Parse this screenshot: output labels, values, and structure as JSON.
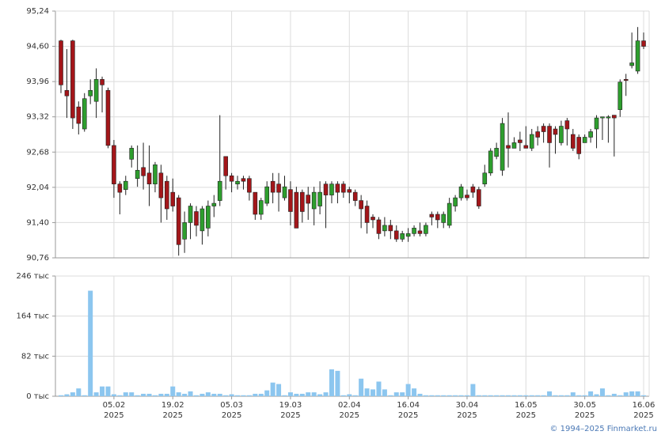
{
  "credit": "© 1994–2025 Finmarket.ru",
  "chart_data": [
    {
      "type": "candlestick",
      "categories": [
        null,
        null,
        null,
        null,
        null,
        null,
        null,
        null,
        null,
        "05.02\n2025",
        null,
        null,
        null,
        null,
        null,
        null,
        null,
        null,
        null,
        "19.02\n2025",
        null,
        null,
        null,
        null,
        null,
        null,
        null,
        null,
        null,
        "05.03\n2025",
        null,
        null,
        null,
        null,
        null,
        null,
        null,
        null,
        null,
        "19.03\n2025",
        null,
        null,
        null,
        null,
        null,
        null,
        null,
        null,
        null,
        "02.04\n2025",
        null,
        null,
        null,
        null,
        null,
        null,
        null,
        null,
        null,
        "16.04\n2025",
        null,
        null,
        null,
        null,
        null,
        null,
        null,
        null,
        null,
        "30.04\n2025",
        null,
        null,
        null,
        null,
        null,
        null,
        null,
        null,
        null,
        "16.05\n2025",
        null,
        null,
        null,
        null,
        null,
        null,
        null,
        null,
        null,
        "30.05\n2025",
        null,
        null,
        null,
        null,
        null,
        null,
        null,
        null,
        null,
        "16.06\n2025"
      ],
      "open": [
        94.7,
        93.8,
        94.7,
        93.5,
        93.1,
        93.7,
        93.6,
        94.0,
        93.8,
        92.8,
        92.1,
        92.0,
        92.55,
        92.2,
        92.4,
        92.3,
        92.1,
        92.3,
        92.15,
        91.95,
        91.85,
        91.1,
        91.4,
        91.6,
        91.25,
        91.3,
        91.7,
        91.8,
        92.6,
        92.25,
        92.1,
        92.2,
        92.2,
        91.95,
        91.55,
        91.75,
        92.15,
        92.1,
        91.85,
        92.0,
        91.95,
        91.95,
        91.9,
        91.65,
        91.7,
        92.1,
        91.9,
        92.1,
        92.1,
        92.0,
        91.95,
        91.8,
        91.7,
        91.5,
        91.45,
        91.25,
        91.35,
        91.25,
        91.1,
        91.15,
        91.2,
        91.25,
        91.2,
        91.55,
        91.55,
        91.4,
        91.35,
        91.7,
        91.85,
        91.9,
        92.05,
        92.0,
        92.1,
        92.3,
        92.6,
        92.35,
        92.8,
        92.75,
        92.9,
        92.8,
        92.75,
        93.05,
        93.15,
        93.15,
        93.1,
        92.85,
        93.25,
        93.0,
        92.95,
        92.85,
        92.95,
        93.1,
        93.3,
        93.3,
        93.35,
        93.45,
        94.0,
        94.25,
        94.15,
        94.7
      ],
      "high": [
        94.72,
        94.55,
        94.72,
        93.6,
        93.75,
        94.0,
        94.2,
        94.05,
        93.85,
        92.9,
        92.15,
        92.25,
        92.8,
        92.8,
        92.85,
        92.8,
        92.5,
        92.45,
        92.25,
        92.2,
        91.9,
        91.6,
        91.75,
        91.7,
        91.7,
        91.8,
        91.9,
        93.35,
        92.6,
        92.3,
        92.25,
        92.25,
        92.25,
        91.95,
        91.85,
        92.15,
        92.3,
        92.3,
        92.25,
        92.15,
        92.05,
        92.0,
        92.05,
        92.05,
        92.15,
        92.15,
        92.15,
        92.15,
        92.15,
        92.05,
        92.0,
        91.9,
        91.8,
        91.55,
        91.5,
        91.5,
        91.45,
        91.35,
        91.25,
        91.3,
        91.35,
        91.4,
        91.4,
        91.6,
        91.6,
        91.6,
        91.85,
        91.9,
        92.1,
        92.0,
        92.1,
        92.05,
        92.45,
        92.75,
        92.85,
        93.3,
        93.4,
        92.95,
        93.05,
        93.15,
        93.1,
        93.15,
        93.2,
        93.2,
        93.15,
        93.25,
        93.3,
        93.1,
        93.0,
        93.0,
        93.1,
        93.35,
        93.32,
        93.35,
        93.35,
        94.0,
        94.1,
        94.85,
        94.95,
        94.85
      ],
      "low": [
        93.75,
        93.3,
        93.1,
        93.0,
        93.05,
        93.55,
        93.3,
        93.4,
        92.75,
        91.85,
        91.55,
        91.9,
        92.4,
        92.05,
        92.0,
        91.7,
        91.95,
        91.4,
        91.45,
        91.6,
        90.8,
        90.85,
        91.1,
        91.15,
        91.0,
        91.15,
        91.5,
        91.7,
        92.0,
        91.95,
        92.0,
        92.0,
        91.8,
        91.45,
        91.45,
        91.7,
        91.75,
        91.6,
        91.8,
        91.35,
        91.3,
        91.4,
        91.45,
        91.35,
        91.55,
        91.3,
        91.75,
        91.75,
        91.85,
        91.75,
        91.7,
        91.3,
        91.2,
        91.3,
        91.1,
        91.15,
        91.1,
        91.05,
        91.05,
        91.05,
        91.15,
        91.15,
        91.15,
        91.35,
        91.3,
        91.3,
        91.3,
        91.6,
        91.8,
        91.8,
        91.85,
        91.65,
        92.05,
        92.25,
        92.55,
        92.25,
        92.4,
        92.75,
        92.7,
        92.75,
        92.7,
        92.8,
        92.85,
        92.4,
        92.65,
        92.8,
        92.8,
        92.7,
        92.55,
        92.85,
        92.85,
        92.75,
        92.9,
        92.85,
        92.6,
        93.32,
        93.7,
        94.2,
        94.1,
        94.55
      ],
      "close": [
        93.9,
        93.7,
        93.3,
        93.2,
        93.65,
        93.8,
        94.0,
        93.9,
        92.8,
        92.1,
        91.95,
        92.15,
        92.75,
        92.35,
        92.25,
        92.1,
        92.45,
        91.85,
        91.65,
        91.7,
        91.0,
        91.4,
        91.7,
        91.35,
        91.65,
        91.7,
        91.75,
        92.15,
        92.25,
        92.15,
        92.15,
        92.15,
        91.95,
        91.55,
        91.8,
        92.05,
        91.95,
        91.95,
        92.05,
        91.6,
        91.3,
        91.6,
        91.75,
        91.95,
        91.95,
        91.9,
        92.1,
        91.95,
        91.95,
        91.95,
        91.8,
        91.65,
        91.4,
        91.45,
        91.2,
        91.35,
        91.25,
        91.1,
        91.2,
        91.2,
        91.3,
        91.2,
        91.35,
        91.5,
        91.45,
        91.55,
        91.75,
        91.85,
        92.05,
        91.85,
        91.95,
        91.7,
        92.3,
        92.7,
        92.75,
        93.2,
        92.75,
        92.85,
        92.85,
        92.75,
        93.0,
        92.95,
        93.05,
        92.85,
        93.0,
        93.15,
        93.1,
        92.75,
        92.65,
        92.95,
        93.05,
        93.3,
        93.32,
        93.32,
        93.3,
        93.95,
        93.98,
        94.3,
        94.7,
        94.6
      ],
      "up_color": "#2e9e2e",
      "down_color": "#a3161a",
      "ylim": [
        90.76,
        95.24
      ],
      "yticks": [
        {
          "value": 90.76,
          "label": "90,76"
        },
        {
          "value": 91.4,
          "label": "91,40"
        },
        {
          "value": 92.04,
          "label": "92,04"
        },
        {
          "value": 92.68,
          "label": "92,68"
        },
        {
          "value": 93.32,
          "label": "93,32"
        },
        {
          "value": 93.96,
          "label": "93,96"
        },
        {
          "value": 94.6,
          "label": "94,60"
        },
        {
          "value": 95.24,
          "label": "95,24"
        }
      ],
      "grid": true
    },
    {
      "type": "bar",
      "values": [
        2,
        4,
        8,
        16,
        2,
        216,
        8,
        20,
        20,
        4,
        2,
        8,
        8,
        2,
        5,
        5,
        2,
        5,
        5,
        20,
        8,
        5,
        10,
        2,
        5,
        8,
        5,
        5,
        2,
        4,
        2,
        2,
        2,
        5,
        5,
        12,
        28,
        25,
        2,
        8,
        5,
        5,
        8,
        8,
        4,
        8,
        55,
        52,
        2,
        4,
        2,
        36,
        16,
        14,
        30,
        14,
        2,
        8,
        8,
        25,
        16,
        5,
        2,
        2,
        2,
        2,
        2,
        2,
        2,
        2,
        25,
        2,
        2,
        2,
        2,
        2,
        2,
        2,
        2,
        2,
        2,
        2,
        2,
        10,
        2,
        2,
        2,
        8,
        2,
        2,
        10,
        4,
        16,
        2,
        5,
        2,
        8,
        10,
        10,
        2
      ],
      "color": "#8cc6ef",
      "ylim": [
        0,
        246
      ],
      "yticks": [
        {
          "value": 0,
          "label": "0 тыс"
        },
        {
          "value": 82,
          "label": "82 тыс"
        },
        {
          "value": 164,
          "label": "164 тыс"
        },
        {
          "value": 246,
          "label": "246 тыс"
        }
      ],
      "grid": true
    }
  ]
}
